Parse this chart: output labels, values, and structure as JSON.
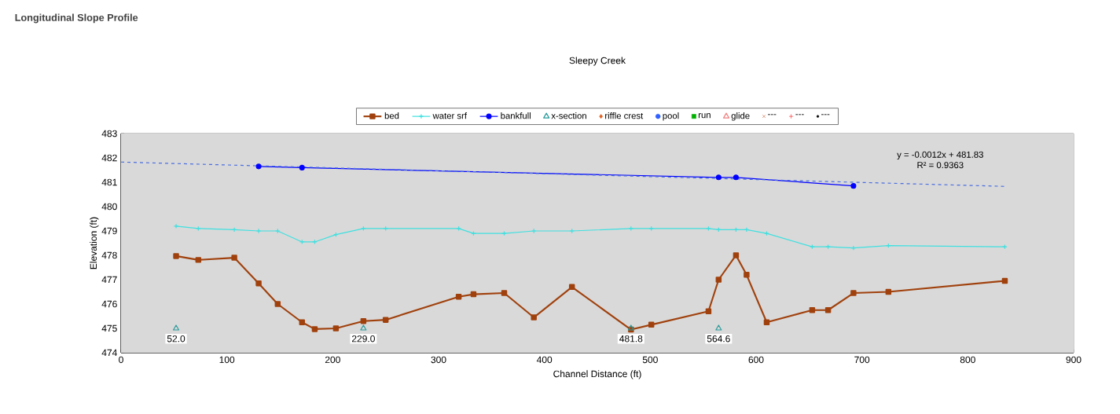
{
  "chart_data": {
    "type": "line",
    "title": "Longitudinal Slope Profile",
    "subtitle": "Sleepy Creek",
    "xlabel": "Channel Distance (ft)",
    "ylabel": "Elevation (ft)",
    "xlim": [
      0,
      900
    ],
    "ylim": [
      474,
      483
    ],
    "xticks": [
      0,
      100,
      200,
      300,
      400,
      500,
      600,
      700,
      800,
      900
    ],
    "yticks": [
      474,
      475,
      476,
      477,
      478,
      479,
      480,
      481,
      482,
      483
    ],
    "grid": true,
    "legend": "top",
    "annotations": [
      "y = -0.0012x + 481.83",
      "R² = 0.9363",
      {
        "text": "52.0",
        "x": 52,
        "y": 475
      },
      {
        "text": "229.0",
        "x": 229,
        "y": 475
      },
      {
        "text": "481.8",
        "x": 481.8,
        "y": 475
      },
      {
        "text": "564.6",
        "x": 564.6,
        "y": 475
      }
    ],
    "series": [
      {
        "name": "bed",
        "color": "#a0410d",
        "marker": "square",
        "x": [
          52,
          73,
          107,
          130,
          148,
          171,
          183,
          203,
          229,
          250,
          319,
          333,
          362,
          390,
          426,
          481.8,
          501,
          555,
          564.6,
          581,
          591,
          610,
          653,
          668,
          692,
          725,
          835
        ],
        "values": [
          477.97,
          477.81,
          477.9,
          476.85,
          476.0,
          475.25,
          474.97,
          475.0,
          475.3,
          475.35,
          476.3,
          476.4,
          476.45,
          475.45,
          476.7,
          474.95,
          475.15,
          475.7,
          477.0,
          478.0,
          477.2,
          475.25,
          475.75,
          475.75,
          476.45,
          476.5,
          476.95
        ]
      },
      {
        "name": "water srf",
        "color": "#40e0e0",
        "marker": "plus",
        "x": [
          52,
          73,
          107,
          130,
          148,
          171,
          183,
          203,
          229,
          250,
          319,
          333,
          362,
          390,
          426,
          481.8,
          501,
          555,
          564.6,
          581,
          591,
          610,
          653,
          668,
          692,
          725,
          835
        ],
        "values": [
          479.2,
          479.1,
          479.05,
          479.0,
          479.0,
          478.55,
          478.55,
          478.85,
          479.1,
          479.1,
          479.1,
          478.9,
          478.9,
          479.0,
          479.0,
          479.1,
          479.1,
          479.1,
          479.05,
          479.05,
          479.05,
          478.9,
          478.35,
          478.35,
          478.3,
          478.4,
          478.35
        ]
      },
      {
        "name": "bankfull",
        "color": "#0000ff",
        "marker": "circle",
        "x": [
          130,
          171,
          564.6,
          581,
          692
        ],
        "values": [
          481.65,
          481.6,
          481.2,
          481.2,
          480.85
        ]
      },
      {
        "name": "x-section",
        "type": "scatter",
        "color": "#2a9a9a",
        "marker": "triangle",
        "x": [
          52,
          229,
          481.8,
          564.6
        ],
        "values": [
          475,
          475,
          475,
          475
        ]
      },
      {
        "name": "riffle crest",
        "type": "scatter",
        "color": "#e06020",
        "marker": "diamond"
      },
      {
        "name": "pool",
        "type": "scatter",
        "color": "#3060ff",
        "marker": "circle"
      },
      {
        "name": "run",
        "type": "scatter",
        "color": "#00b000",
        "marker": "square"
      },
      {
        "name": "glide",
        "type": "scatter",
        "color": "#f08080",
        "marker": "triangle"
      },
      {
        "name": "---",
        "type": "scatter",
        "color": "#c05020",
        "marker": "cross"
      },
      {
        "name": "---",
        "type": "scatter",
        "color": "#ff0000",
        "marker": "plus"
      },
      {
        "name": "---",
        "type": "scatter",
        "color": "#000000",
        "marker": "point"
      },
      {
        "color": "#4a6ee0",
        "marker": "none",
        "line_style": "dashed",
        "x": [
          0,
          835
        ],
        "values": [
          481.83,
          480.83
        ]
      }
    ]
  }
}
